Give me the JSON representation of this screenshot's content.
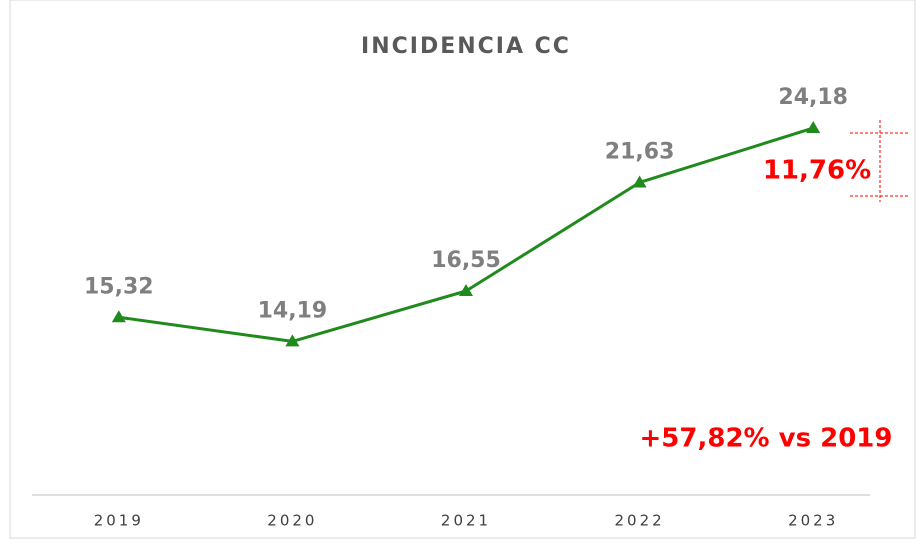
{
  "chart_data": {
    "type": "line",
    "title": "INCIDENCIA  CC",
    "categories": [
      "2019",
      "2020",
      "2021",
      "2022",
      "2023"
    ],
    "series": [
      {
        "name": "Incidencia CC",
        "color": "#218a1c",
        "values": [
          15.32,
          14.19,
          16.55,
          21.63,
          24.18
        ],
        "value_labels": [
          "15,32",
          "14,19",
          "16,55",
          "21,63",
          "24,18"
        ]
      }
    ],
    "ylim": [
      7,
      28.3
    ],
    "annotations": [
      "11,76%",
      "+57,82% vs 2019"
    ],
    "annotation_color": "#ff0000"
  }
}
